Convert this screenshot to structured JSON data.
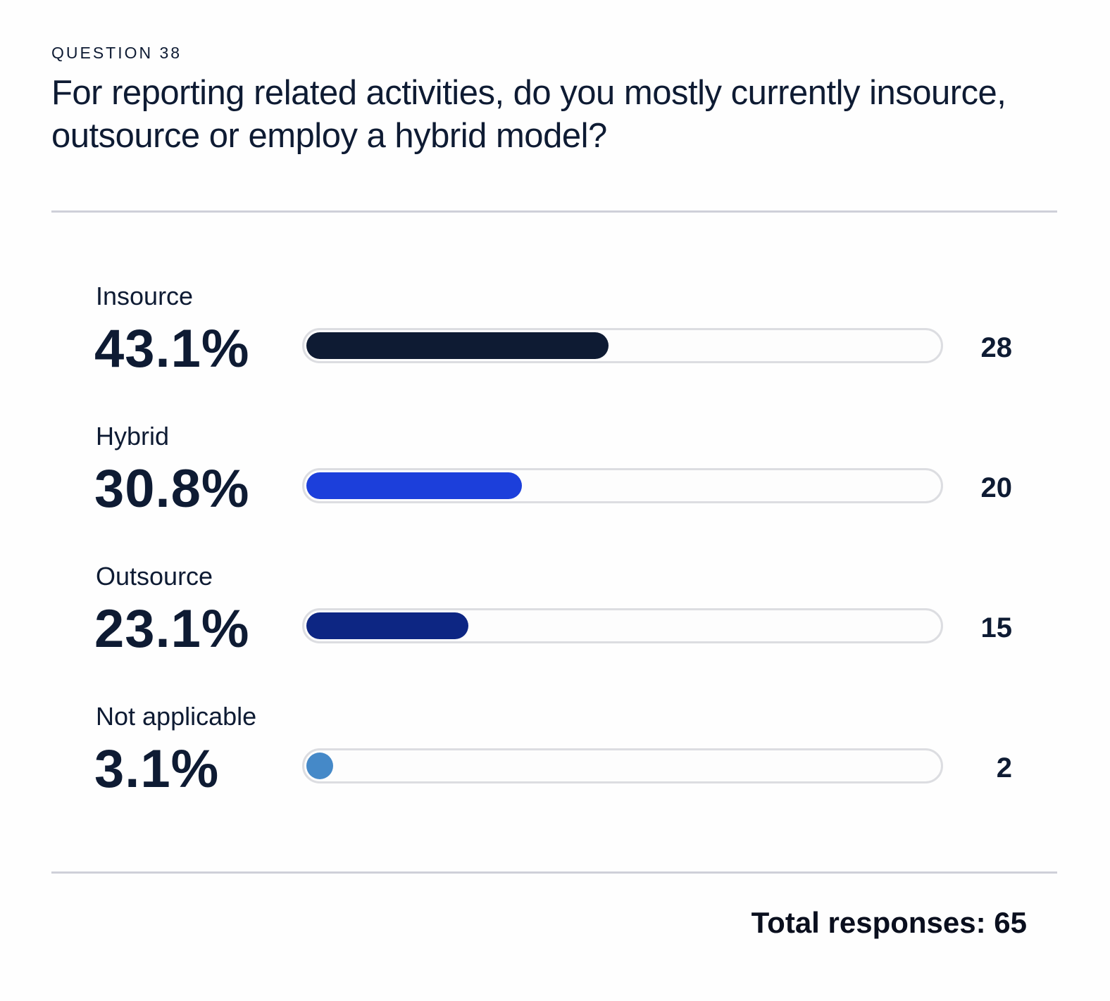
{
  "eyebrow": "QUESTION 38",
  "title": "For reporting related activities, do you mostly currently insource, outsource or employ a hybrid model?",
  "total_label": "Total responses: 65",
  "chart_data": {
    "type": "bar",
    "orientation": "horizontal",
    "categories": [
      "Insource",
      "Hybrid",
      "Outsource",
      "Not applicable"
    ],
    "percent_labels": [
      "43.1%",
      "30.8%",
      "23.1%",
      "3.1%"
    ],
    "values": [
      43.1,
      30.8,
      23.1,
      3.1
    ],
    "counts": [
      "28",
      "20",
      "15",
      "2"
    ],
    "colors": [
      "#0e1b33",
      "#1c3fdb",
      "#0d2683",
      "#4589c8"
    ],
    "track_color": "#dcdde1",
    "xlim": [
      0,
      100
    ]
  }
}
